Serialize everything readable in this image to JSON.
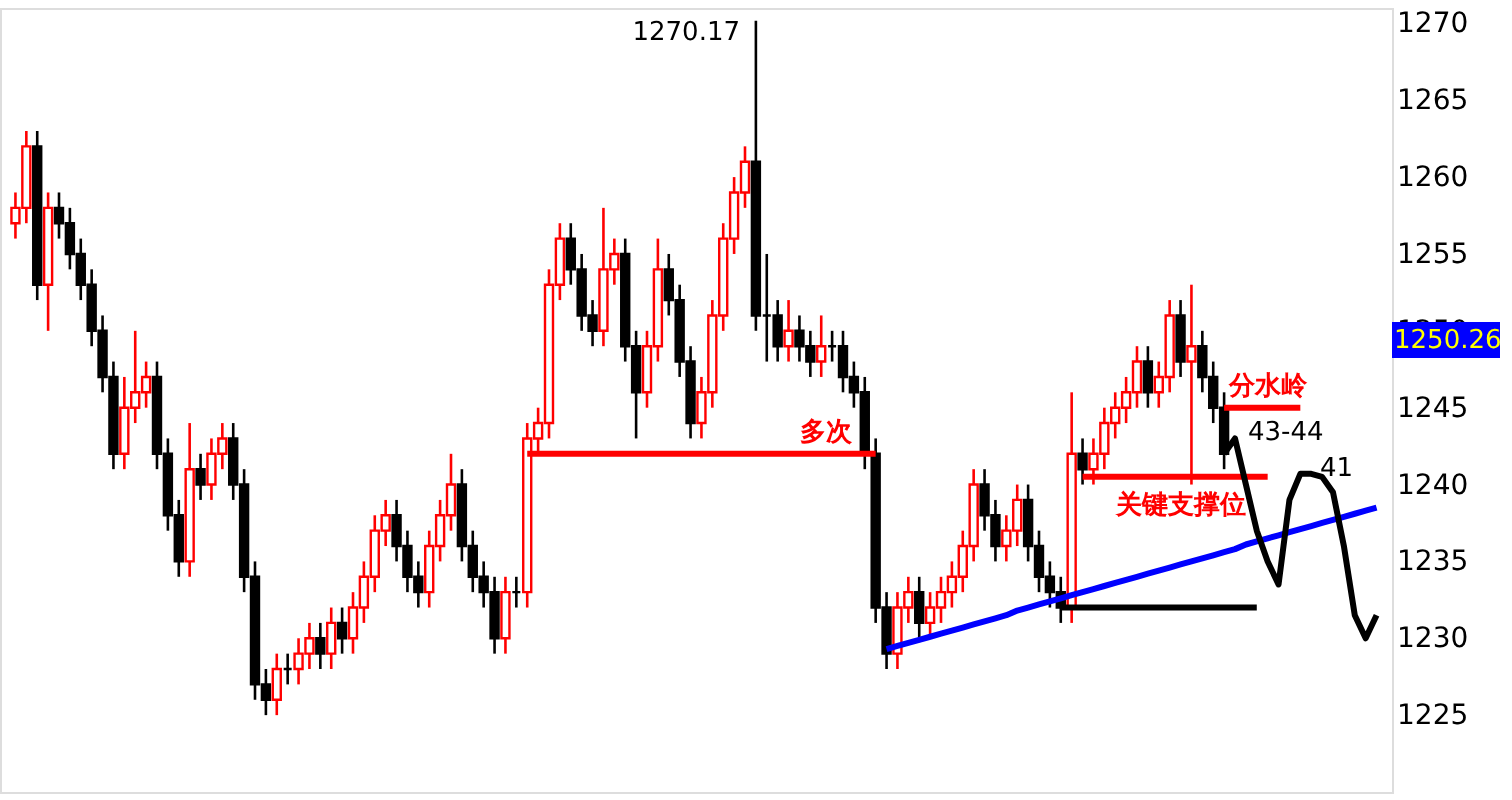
{
  "chart_data": {
    "type": "candlestick",
    "categories": [
      null,
      null,
      null,
      null,
      null,
      null,
      null,
      null,
      null,
      null,
      null,
      null,
      null,
      null,
      null,
      null,
      null,
      null,
      null,
      null,
      null,
      null,
      null,
      null,
      null,
      null,
      null,
      null,
      null,
      null,
      null,
      null,
      null,
      null,
      null,
      null,
      null,
      null,
      null,
      null,
      null,
      null,
      null,
      null,
      null,
      null,
      null,
      null,
      null,
      null,
      null,
      null,
      null,
      null,
      null,
      null,
      null,
      null,
      null,
      null,
      null,
      null,
      null,
      null,
      null,
      null,
      null,
      null,
      null,
      null,
      null,
      null,
      null,
      null,
      null,
      null,
      null,
      null,
      null,
      null,
      null,
      null,
      null,
      null,
      null,
      null,
      null,
      null,
      null,
      null,
      null,
      null,
      null,
      null,
      null,
      null,
      null,
      null,
      null,
      null,
      null,
      null,
      null,
      null,
      null,
      null,
      null,
      null,
      null,
      null,
      null,
      null,
      null,
      null,
      null,
      null,
      null,
      null,
      null,
      null,
      null,
      null,
      null,
      null,
      null,
      null
    ],
    "ohlc": [
      [
        1257,
        1259,
        1256,
        1258
      ],
      [
        1258,
        1263,
        1257,
        1262
      ],
      [
        1262,
        1263,
        1252,
        1253
      ],
      [
        1253,
        1259,
        1250,
        1258
      ],
      [
        1258,
        1259,
        1256,
        1257
      ],
      [
        1257,
        1258,
        1254,
        1255
      ],
      [
        1255,
        1256,
        1252,
        1253
      ],
      [
        1253,
        1254,
        1249,
        1250
      ],
      [
        1250,
        1251,
        1246,
        1247
      ],
      [
        1247,
        1248,
        1241,
        1242
      ],
      [
        1242,
        1247,
        1241,
        1245
      ],
      [
        1245,
        1250,
        1244,
        1246
      ],
      [
        1246,
        1248,
        1245,
        1247
      ],
      [
        1247,
        1248,
        1241,
        1242
      ],
      [
        1242,
        1243,
        1237,
        1238
      ],
      [
        1238,
        1239,
        1234,
        1235
      ],
      [
        1235,
        1244,
        1234,
        1241
      ],
      [
        1241,
        1242,
        1239,
        1240
      ],
      [
        1240,
        1243,
        1239,
        1242
      ],
      [
        1242,
        1244,
        1241,
        1243
      ],
      [
        1243,
        1244,
        1239,
        1240
      ],
      [
        1240,
        1241,
        1233,
        1234
      ],
      [
        1234,
        1235,
        1226,
        1227
      ],
      [
        1227,
        1228,
        1225,
        1226
      ],
      [
        1226,
        1229,
        1225,
        1228
      ],
      [
        1228,
        1229,
        1227,
        1228
      ],
      [
        1228,
        1230,
        1227,
        1229
      ],
      [
        1229,
        1231,
        1228,
        1230
      ],
      [
        1230,
        1231,
        1228,
        1229
      ],
      [
        1229,
        1232,
        1228,
        1231
      ],
      [
        1231,
        1232,
        1229,
        1230
      ],
      [
        1230,
        1233,
        1229,
        1232
      ],
      [
        1232,
        1235,
        1231,
        1234
      ],
      [
        1234,
        1238,
        1233,
        1237
      ],
      [
        1237,
        1239,
        1236,
        1238
      ],
      [
        1238,
        1239,
        1235,
        1236
      ],
      [
        1236,
        1237,
        1233,
        1234
      ],
      [
        1234,
        1235,
        1232,
        1233
      ],
      [
        1233,
        1237,
        1232,
        1236
      ],
      [
        1236,
        1239,
        1235,
        1238
      ],
      [
        1238,
        1242,
        1237,
        1240
      ],
      [
        1240,
        1241,
        1235,
        1236
      ],
      [
        1236,
        1237,
        1233,
        1234
      ],
      [
        1234,
        1235,
        1232,
        1233
      ],
      [
        1233,
        1234,
        1229,
        1230
      ],
      [
        1230,
        1234,
        1229,
        1233
      ],
      [
        1233,
        1234,
        1232,
        1233
      ],
      [
        1233,
        1244,
        1232,
        1243
      ],
      [
        1243,
        1245,
        1242,
        1244
      ],
      [
        1244,
        1254,
        1243,
        1253
      ],
      [
        1253,
        1257,
        1252,
        1256
      ],
      [
        1256,
        1257,
        1253,
        1254
      ],
      [
        1254,
        1255,
        1250,
        1251
      ],
      [
        1251,
        1252,
        1249,
        1250
      ],
      [
        1250,
        1258,
        1249,
        1254
      ],
      [
        1254,
        1256,
        1253,
        1255
      ],
      [
        1255,
        1256,
        1248,
        1249
      ],
      [
        1249,
        1250,
        1243,
        1246
      ],
      [
        1246,
        1250,
        1245,
        1249
      ],
      [
        1249,
        1256,
        1248,
        1254
      ],
      [
        1254,
        1255,
        1251,
        1252
      ],
      [
        1252,
        1253,
        1247,
        1248
      ],
      [
        1248,
        1249,
        1243,
        1244
      ],
      [
        1244,
        1247,
        1243,
        1246
      ],
      [
        1246,
        1252,
        1245,
        1251
      ],
      [
        1251,
        1257,
        1250,
        1256
      ],
      [
        1256,
        1260,
        1255,
        1259
      ],
      [
        1259,
        1262,
        1258,
        1261
      ],
      [
        1261,
        1270.17,
        1250,
        1251
      ],
      [
        1251,
        1255,
        1248,
        1251
      ],
      [
        1251,
        1252,
        1248,
        1249
      ],
      [
        1249,
        1252,
        1248,
        1250
      ],
      [
        1250,
        1251,
        1248,
        1249
      ],
      [
        1249,
        1250,
        1247,
        1248
      ],
      [
        1248,
        1251,
        1247,
        1249
      ],
      [
        1249,
        1250,
        1248,
        1249
      ],
      [
        1249,
        1250,
        1246,
        1247
      ],
      [
        1247,
        1248,
        1245,
        1246
      ],
      [
        1246,
        1247,
        1241,
        1242
      ],
      [
        1242,
        1243,
        1231,
        1232
      ],
      [
        1232,
        1233,
        1228,
        1229
      ],
      [
        1229,
        1233,
        1228,
        1232
      ],
      [
        1232,
        1234,
        1231,
        1233
      ],
      [
        1233,
        1234,
        1230,
        1231
      ],
      [
        1231,
        1233,
        1230,
        1232
      ],
      [
        1232,
        1234,
        1231,
        1233
      ],
      [
        1233,
        1235,
        1232,
        1234
      ],
      [
        1234,
        1237,
        1233,
        1236
      ],
      [
        1236,
        1241,
        1235,
        1240
      ],
      [
        1240,
        1241,
        1237,
        1238
      ],
      [
        1238,
        1239,
        1235,
        1236
      ],
      [
        1236,
        1238,
        1235,
        1237
      ],
      [
        1237,
        1240,
        1236,
        1239
      ],
      [
        1239,
        1240,
        1235,
        1236
      ],
      [
        1236,
        1237,
        1233,
        1234
      ],
      [
        1234,
        1235,
        1232,
        1233
      ],
      [
        1233,
        1234,
        1231,
        1232
      ],
      [
        1232,
        1246,
        1231,
        1242
      ],
      [
        1242,
        1243,
        1240,
        1241
      ],
      [
        1241,
        1243,
        1240,
        1242
      ],
      [
        1242,
        1245,
        1241,
        1244
      ],
      [
        1244,
        1246,
        1243,
        1245
      ],
      [
        1245,
        1247,
        1244,
        1246
      ],
      [
        1246,
        1249,
        1245,
        1248
      ],
      [
        1248,
        1249,
        1245,
        1246
      ],
      [
        1246,
        1248,
        1245,
        1247
      ],
      [
        1247,
        1252,
        1246,
        1251
      ],
      [
        1251,
        1252,
        1247,
        1248
      ],
      [
        1248,
        1253,
        1240,
        1249
      ],
      [
        1249,
        1250,
        1246,
        1247
      ],
      [
        1247,
        1248,
        1244,
        1245
      ],
      [
        1245,
        1246,
        1241,
        1242
      ],
      null,
      null,
      null,
      null,
      null,
      null,
      null,
      null,
      null,
      null,
      null,
      null,
      null,
      null
    ],
    "series": [
      {
        "name": "多次",
        "type": "line",
        "color": "#ff0000",
        "values": [
          null,
          null,
          null,
          null,
          null,
          null,
          null,
          null,
          null,
          null,
          null,
          null,
          null,
          null,
          null,
          null,
          null,
          null,
          null,
          null,
          null,
          null,
          null,
          null,
          null,
          null,
          null,
          null,
          null,
          null,
          null,
          null,
          null,
          null,
          null,
          null,
          null,
          null,
          null,
          null,
          null,
          null,
          null,
          null,
          null,
          null,
          null,
          1242,
          1242,
          1242,
          1242,
          1242,
          1242,
          1242,
          1242,
          1242,
          1242,
          1242,
          1242,
          1242,
          1242,
          1242,
          1242,
          1242,
          1242,
          1242,
          1242,
          1242,
          1242,
          1242,
          1242,
          1242,
          1242,
          1242,
          1242,
          1242,
          1242,
          1242,
          1242,
          1242,
          null,
          null,
          null,
          null,
          null,
          null,
          null,
          null,
          null,
          null,
          null,
          null,
          null,
          null,
          null,
          null,
          null,
          null,
          null,
          null,
          null,
          null,
          null,
          null,
          null,
          null,
          null,
          null,
          null,
          null,
          null,
          null,
          null,
          null,
          null,
          null,
          null,
          null,
          null,
          null,
          null,
          null,
          null,
          null,
          null,
          null
        ]
      },
      {
        "name": "关键支撑位",
        "type": "line",
        "color": "#ff0000",
        "values": [
          null,
          null,
          null,
          null,
          null,
          null,
          null,
          null,
          null,
          null,
          null,
          null,
          null,
          null,
          null,
          null,
          null,
          null,
          null,
          null,
          null,
          null,
          null,
          null,
          null,
          null,
          null,
          null,
          null,
          null,
          null,
          null,
          null,
          null,
          null,
          null,
          null,
          null,
          null,
          null,
          null,
          null,
          null,
          null,
          null,
          null,
          null,
          null,
          null,
          null,
          null,
          null,
          null,
          null,
          null,
          null,
          null,
          null,
          null,
          null,
          null,
          null,
          null,
          null,
          null,
          null,
          null,
          null,
          null,
          null,
          null,
          null,
          null,
          null,
          null,
          null,
          null,
          null,
          null,
          null,
          null,
          null,
          null,
          null,
          null,
          null,
          null,
          null,
          null,
          null,
          null,
          null,
          null,
          null,
          null,
          null,
          null,
          null,
          1240.5,
          1240.5,
          1240.5,
          1240.5,
          1240.5,
          1240.5,
          1240.5,
          1240.5,
          1240.5,
          1240.5,
          1240.5,
          1240.5,
          1240.5,
          1240.5,
          1240.5,
          1240.5,
          1240.5,
          1240.5,
          null,
          null,
          null,
          null,
          null,
          null,
          null,
          null,
          null,
          null
        ]
      },
      {
        "name": "分水岭",
        "type": "line",
        "color": "#ff0000",
        "values": [
          null,
          null,
          null,
          null,
          null,
          null,
          null,
          null,
          null,
          null,
          null,
          null,
          null,
          null,
          null,
          null,
          null,
          null,
          null,
          null,
          null,
          null,
          null,
          null,
          null,
          null,
          null,
          null,
          null,
          null,
          null,
          null,
          null,
          null,
          null,
          null,
          null,
          null,
          null,
          null,
          null,
          null,
          null,
          null,
          null,
          null,
          null,
          null,
          null,
          null,
          null,
          null,
          null,
          null,
          null,
          null,
          null,
          null,
          null,
          null,
          null,
          null,
          null,
          null,
          null,
          null,
          null,
          null,
          null,
          null,
          null,
          null,
          null,
          null,
          null,
          null,
          null,
          null,
          null,
          null,
          null,
          null,
          null,
          null,
          null,
          null,
          null,
          null,
          null,
          null,
          null,
          null,
          null,
          null,
          null,
          null,
          null,
          null,
          null,
          null,
          null,
          null,
          null,
          null,
          null,
          null,
          null,
          null,
          null,
          null,
          null,
          1245,
          1245,
          1245,
          1245,
          1245,
          1245,
          1245,
          1245,
          null,
          null,
          null,
          null,
          null,
          null,
          null
        ]
      },
      {
        "type": "line",
        "color": "#000000",
        "values": [
          null,
          null,
          null,
          null,
          null,
          null,
          null,
          null,
          null,
          null,
          null,
          null,
          null,
          null,
          null,
          null,
          null,
          null,
          null,
          null,
          null,
          null,
          null,
          null,
          null,
          null,
          null,
          null,
          null,
          null,
          null,
          null,
          null,
          null,
          null,
          null,
          null,
          null,
          null,
          null,
          null,
          null,
          null,
          null,
          null,
          null,
          null,
          null,
          null,
          null,
          null,
          null,
          null,
          null,
          null,
          null,
          null,
          null,
          null,
          null,
          null,
          null,
          null,
          null,
          null,
          null,
          null,
          null,
          null,
          null,
          null,
          null,
          null,
          null,
          null,
          null,
          null,
          null,
          null,
          null,
          null,
          null,
          null,
          null,
          null,
          null,
          null,
          null,
          null,
          null,
          null,
          null,
          null,
          null,
          null,
          null,
          1232,
          1232,
          1232,
          1232,
          1232,
          1232,
          1232,
          1232,
          1232,
          1232,
          1232,
          1232,
          1232,
          1232,
          1232,
          1232,
          1232,
          1232,
          1232,
          null,
          null,
          null,
          null,
          null,
          null,
          null,
          null,
          null,
          null,
          null
        ]
      },
      {
        "type": "line",
        "color": "#0000ff",
        "values": [
          null,
          null,
          null,
          null,
          null,
          null,
          null,
          null,
          null,
          null,
          null,
          null,
          null,
          null,
          null,
          null,
          null,
          null,
          null,
          null,
          null,
          null,
          null,
          null,
          null,
          null,
          null,
          null,
          null,
          null,
          null,
          null,
          null,
          null,
          null,
          null,
          null,
          null,
          null,
          null,
          null,
          null,
          null,
          null,
          null,
          null,
          null,
          null,
          null,
          null,
          null,
          null,
          null,
          null,
          null,
          null,
          null,
          null,
          null,
          null,
          null,
          null,
          null,
          null,
          null,
          null,
          null,
          null,
          null,
          null,
          null,
          null,
          null,
          null,
          null,
          null,
          null,
          null,
          null,
          null,
          1229.3,
          1229.5,
          1229.7,
          1229.9,
          1230.1,
          1230.3,
          1230.5,
          1230.7,
          1230.9,
          1231.1,
          1231.3,
          1231.5,
          1231.8,
          1232.0,
          1232.2,
          1232.4,
          1232.6,
          1232.8,
          1233.0,
          1233.2,
          1233.4,
          1233.6,
          1233.8,
          1234.0,
          1234.2,
          1234.4,
          1234.6,
          1234.8,
          1235.0,
          1235.2,
          1235.4,
          1235.6,
          1235.8,
          1236.1,
          1236.3,
          1236.5,
          1236.7,
          1236.9,
          1237.1,
          1237.3,
          1237.5,
          1237.7,
          1237.9,
          1238.1,
          1238.3,
          1238.5
        ]
      },
      {
        "type": "line",
        "color": "#000000",
        "values": [
          null,
          null,
          null,
          null,
          null,
          null,
          null,
          null,
          null,
          null,
          null,
          null,
          null,
          null,
          null,
          null,
          null,
          null,
          null,
          null,
          null,
          null,
          null,
          null,
          null,
          null,
          null,
          null,
          null,
          null,
          null,
          null,
          null,
          null,
          null,
          null,
          null,
          null,
          null,
          null,
          null,
          null,
          null,
          null,
          null,
          null,
          null,
          null,
          null,
          null,
          null,
          null,
          null,
          null,
          null,
          null,
          null,
          null,
          null,
          null,
          null,
          null,
          null,
          null,
          null,
          null,
          null,
          null,
          null,
          null,
          null,
          null,
          null,
          null,
          null,
          null,
          null,
          null,
          null,
          null,
          null,
          null,
          null,
          null,
          null,
          null,
          null,
          null,
          null,
          null,
          null,
          null,
          null,
          null,
          null,
          null,
          null,
          null,
          null,
          null,
          null,
          null,
          null,
          null,
          null,
          null,
          null,
          null,
          null,
          null,
          null,
          1242,
          1243,
          1240,
          1237,
          1235,
          1233.5,
          1239,
          1240.7,
          1240.7,
          1240.5,
          1239.5,
          1236,
          1231.5,
          1230,
          1231.5
        ]
      }
    ],
    "annotations": [
      "1270.17",
      "43-44",
      "41",
      "1250.26"
    ],
    "ylim": [
      1220,
      1271
    ],
    "yticks": [
      1225,
      1230,
      1235,
      1240,
      1245,
      1250,
      1255,
      1260,
      1265,
      1270
    ],
    "tick_labels": "y",
    "grid": false
  }
}
